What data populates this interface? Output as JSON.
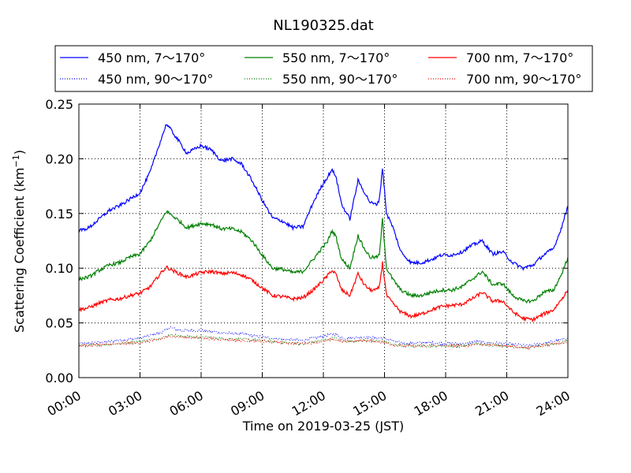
{
  "chart_data": {
    "type": "line",
    "title": "NL190325.dat",
    "xlabel": "Time on 2019-03-25 (JST)",
    "ylabel": "Scattering Coefficient (km",
    "ylabel_sup": "−1",
    "ylabel_close": ")",
    "xlim": [
      "00:00",
      "24:00"
    ],
    "ylim": [
      0.0,
      0.25
    ],
    "grid": true,
    "legend_placement": "top (above plot)",
    "x_ticks": [
      "00:00",
      "03:00",
      "06:00",
      "09:00",
      "12:00",
      "15:00",
      "18:00",
      "21:00",
      "24:00"
    ],
    "y_ticks": [
      "0.00",
      "0.05",
      "0.10",
      "0.15",
      "0.20",
      "0.25"
    ],
    "series": [
      {
        "name": "450 nm, 7～170°",
        "color": "#0000ff",
        "style": "solid",
        "x_hours": [
          0,
          0.5,
          1,
          1.5,
          2,
          2.5,
          3,
          3.5,
          4,
          4.3,
          4.8,
          5.3,
          6,
          6.5,
          7,
          7.5,
          8,
          8.5,
          9,
          9.5,
          10,
          10.5,
          11,
          11.5,
          12,
          12.2,
          12.4,
          12.6,
          12.9,
          13.3,
          13.7,
          14,
          14.3,
          14.6,
          14.75,
          14.9,
          15.1,
          15.4,
          15.8,
          16.3,
          16.8,
          17.3,
          17.8,
          18.3,
          18.8,
          19.3,
          19.8,
          20.3,
          20.8,
          21.3,
          21.8,
          22.3,
          22.8,
          23.3,
          23.7,
          24
        ],
        "values": [
          0.134,
          0.137,
          0.145,
          0.153,
          0.157,
          0.163,
          0.169,
          0.188,
          0.216,
          0.232,
          0.219,
          0.205,
          0.212,
          0.208,
          0.198,
          0.2,
          0.195,
          0.18,
          0.162,
          0.146,
          0.143,
          0.137,
          0.138,
          0.16,
          0.178,
          0.183,
          0.19,
          0.185,
          0.158,
          0.145,
          0.18,
          0.17,
          0.16,
          0.158,
          0.163,
          0.192,
          0.15,
          0.138,
          0.115,
          0.105,
          0.105,
          0.108,
          0.112,
          0.112,
          0.115,
          0.121,
          0.125,
          0.113,
          0.115,
          0.105,
          0.1,
          0.103,
          0.112,
          0.118,
          0.138,
          0.157
        ]
      },
      {
        "name": "550 nm, 7～170°",
        "color": "#008000",
        "style": "solid",
        "x_hours": [
          0,
          0.5,
          1,
          1.5,
          2,
          2.5,
          3,
          3.5,
          4,
          4.3,
          4.8,
          5.3,
          6,
          6.5,
          7,
          7.5,
          8,
          8.5,
          9,
          9.5,
          10,
          10.5,
          11,
          11.5,
          12,
          12.2,
          12.4,
          12.6,
          12.9,
          13.3,
          13.7,
          14,
          14.3,
          14.6,
          14.75,
          14.9,
          15.1,
          15.4,
          15.8,
          16.3,
          16.8,
          17.3,
          17.8,
          18.3,
          18.8,
          19.3,
          19.8,
          20.3,
          20.8,
          21.3,
          21.8,
          22.3,
          22.8,
          23.3,
          23.7,
          24
        ],
        "values": [
          0.09,
          0.092,
          0.098,
          0.103,
          0.105,
          0.11,
          0.113,
          0.125,
          0.142,
          0.152,
          0.145,
          0.137,
          0.141,
          0.14,
          0.136,
          0.136,
          0.133,
          0.125,
          0.112,
          0.1,
          0.099,
          0.096,
          0.097,
          0.108,
          0.12,
          0.124,
          0.134,
          0.13,
          0.108,
          0.1,
          0.13,
          0.118,
          0.11,
          0.11,
          0.112,
          0.145,
          0.1,
          0.09,
          0.08,
          0.075,
          0.075,
          0.078,
          0.08,
          0.08,
          0.083,
          0.09,
          0.097,
          0.085,
          0.086,
          0.075,
          0.07,
          0.07,
          0.078,
          0.08,
          0.095,
          0.11
        ]
      },
      {
        "name": "700 nm, 7～170°",
        "color": "#ff0000",
        "style": "solid",
        "x_hours": [
          0,
          0.5,
          1,
          1.5,
          2,
          2.5,
          3,
          3.5,
          4,
          4.3,
          4.8,
          5.3,
          6,
          6.5,
          7,
          7.5,
          8,
          8.5,
          9,
          9.5,
          10,
          10.5,
          11,
          11.5,
          12,
          12.2,
          12.4,
          12.6,
          12.9,
          13.3,
          13.7,
          14,
          14.3,
          14.6,
          14.75,
          14.9,
          15.1,
          15.4,
          15.8,
          16.3,
          16.8,
          17.3,
          17.8,
          18.3,
          18.8,
          19.3,
          19.8,
          20.3,
          20.8,
          21.3,
          21.8,
          22.3,
          22.8,
          23.3,
          23.7,
          24
        ],
        "values": [
          0.062,
          0.064,
          0.068,
          0.071,
          0.072,
          0.075,
          0.077,
          0.083,
          0.095,
          0.101,
          0.096,
          0.092,
          0.096,
          0.097,
          0.095,
          0.096,
          0.094,
          0.089,
          0.082,
          0.075,
          0.074,
          0.072,
          0.073,
          0.08,
          0.089,
          0.093,
          0.098,
          0.095,
          0.08,
          0.075,
          0.095,
          0.085,
          0.08,
          0.08,
          0.083,
          0.105,
          0.075,
          0.068,
          0.06,
          0.056,
          0.058,
          0.062,
          0.065,
          0.066,
          0.067,
          0.072,
          0.078,
          0.07,
          0.07,
          0.06,
          0.054,
          0.053,
          0.058,
          0.062,
          0.072,
          0.08
        ]
      },
      {
        "name": "450 nm, 90～170°",
        "color": "#0000ff",
        "style": "dotted",
        "x_hours": [
          0,
          1,
          2,
          3,
          4,
          4.5,
          5,
          6,
          7,
          8,
          9,
          10,
          11,
          12,
          12.5,
          13,
          14,
          15,
          15.5,
          16,
          17,
          18,
          19,
          19.5,
          20,
          21,
          22,
          23,
          24
        ],
        "values": [
          0.031,
          0.032,
          0.034,
          0.036,
          0.041,
          0.046,
          0.043,
          0.043,
          0.041,
          0.04,
          0.037,
          0.035,
          0.034,
          0.038,
          0.04,
          0.036,
          0.037,
          0.036,
          0.033,
          0.031,
          0.032,
          0.031,
          0.031,
          0.033,
          0.032,
          0.031,
          0.029,
          0.032,
          0.036
        ]
      },
      {
        "name": "550 nm, 90～170°",
        "color": "#008000",
        "style": "dotted",
        "x_hours": [
          0,
          1,
          2,
          3,
          4,
          4.5,
          5,
          6,
          7,
          8,
          9,
          10,
          11,
          12,
          12.5,
          13,
          14,
          15,
          15.5,
          16,
          17,
          18,
          19,
          19.5,
          20,
          21,
          22,
          23,
          24
        ],
        "values": [
          0.029,
          0.03,
          0.031,
          0.033,
          0.036,
          0.039,
          0.038,
          0.037,
          0.036,
          0.035,
          0.034,
          0.032,
          0.031,
          0.034,
          0.036,
          0.033,
          0.034,
          0.033,
          0.03,
          0.029,
          0.029,
          0.029,
          0.029,
          0.031,
          0.03,
          0.029,
          0.027,
          0.03,
          0.033
        ]
      },
      {
        "name": "700 nm, 90～170°",
        "color": "#ff0000",
        "style": "dotted",
        "x_hours": [
          0,
          1,
          2,
          3,
          4,
          4.5,
          5,
          6,
          7,
          8,
          9,
          10,
          11,
          12,
          12.5,
          13,
          14,
          15,
          15.5,
          16,
          17,
          18,
          19,
          19.5,
          20,
          21,
          22,
          23,
          24
        ],
        "values": [
          0.029,
          0.03,
          0.031,
          0.032,
          0.035,
          0.038,
          0.037,
          0.036,
          0.035,
          0.034,
          0.033,
          0.032,
          0.031,
          0.033,
          0.035,
          0.033,
          0.034,
          0.032,
          0.03,
          0.029,
          0.029,
          0.029,
          0.029,
          0.031,
          0.03,
          0.029,
          0.027,
          0.03,
          0.033
        ]
      }
    ]
  }
}
